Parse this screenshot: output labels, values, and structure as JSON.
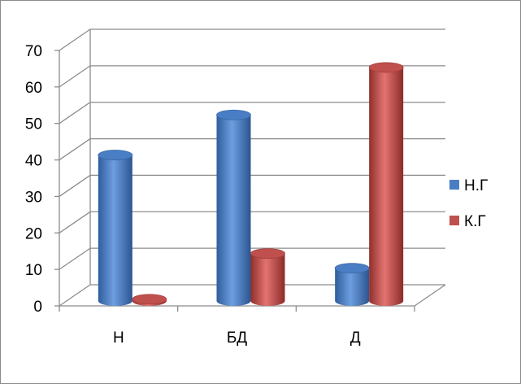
{
  "chart_data": {
    "type": "bar",
    "categories": [
      "Н",
      "БД",
      "Д"
    ],
    "series": [
      {
        "name": "Н.Г",
        "values": [
          40,
          51,
          9
        ],
        "color": "#4a7ec4"
      },
      {
        "name": "К.Г",
        "values": [
          0.5,
          13,
          64
        ],
        "color": "#c0504d"
      }
    ],
    "ylim": [
      0,
      70
    ],
    "yticks": [
      "0",
      "10",
      "20",
      "30",
      "40",
      "50",
      "60",
      "70"
    ],
    "grid": true,
    "legend": "right",
    "style": "3d-cylinder"
  }
}
